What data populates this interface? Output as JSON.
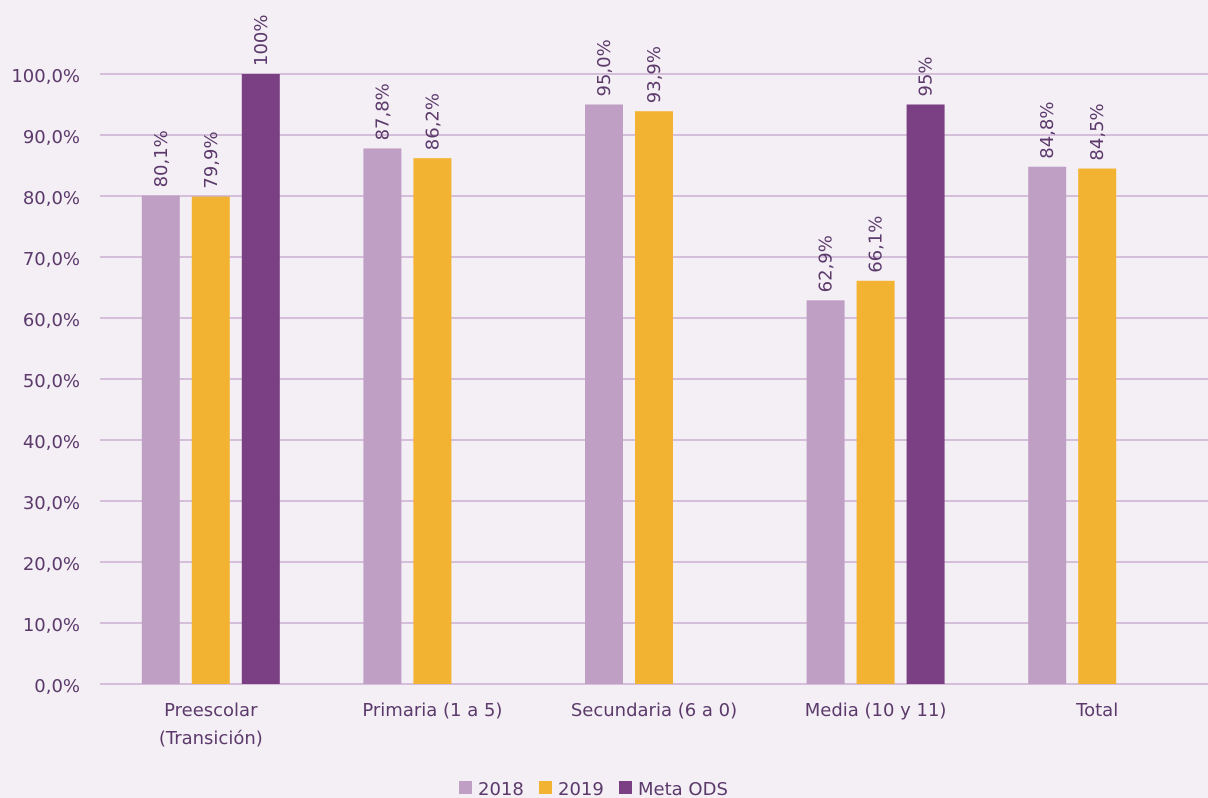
{
  "chart_data": {
    "type": "bar",
    "title": "",
    "xlabel": "",
    "ylabel": "",
    "ylim": [
      0,
      100
    ],
    "y_tick_labels": [
      "0,0%",
      "10,0%",
      "20,0%",
      "30,0%",
      "40,0%",
      "50,0%",
      "60,0%",
      "70,0%",
      "80,0%",
      "90,0%",
      "100,0%"
    ],
    "y_ticks": [
      0,
      10,
      20,
      30,
      40,
      50,
      60,
      70,
      80,
      90,
      100
    ],
    "grid": true,
    "legend_position": "bottom",
    "categories": [
      [
        "Preescolar",
        "(Transición)"
      ],
      [
        "Primaria (1 a 5)"
      ],
      [
        "Secundaria (6 a 0)"
      ],
      [
        "Media (10 y 11)"
      ],
      [
        "Total"
      ]
    ],
    "series": [
      {
        "name": "2018",
        "color": "#bfa0c4",
        "values": [
          80.1,
          87.8,
          95.0,
          62.9,
          84.8
        ],
        "labels": [
          "80,1%",
          "87,8%",
          "95,0%",
          "62,9%",
          "84,8%"
        ]
      },
      {
        "name": "2019",
        "color": "#f3b332",
        "values": [
          79.9,
          86.2,
          93.9,
          66.1,
          84.5
        ],
        "labels": [
          "79,9%",
          "86,2%",
          "93,9%",
          "66,1%",
          "84,5%"
        ]
      },
      {
        "name": "Meta ODS",
        "color": "#7b3f83",
        "values": [
          100,
          null,
          null,
          95,
          null
        ],
        "labels": [
          "100%",
          "",
          "",
          "95%",
          ""
        ]
      }
    ],
    "colors": {
      "background": "#f4eef5",
      "grid": "#c9aed0",
      "text": "#5b3a6b"
    }
  }
}
